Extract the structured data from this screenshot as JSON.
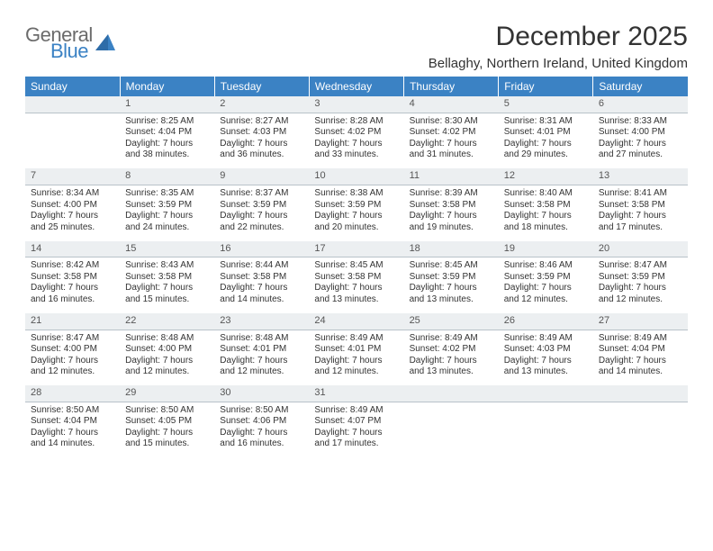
{
  "brand": {
    "general": "General",
    "blue": "Blue"
  },
  "title": "December 2025",
  "location": "Bellaghy, Northern Ireland, United Kingdom",
  "header_bg": "#3b82c4",
  "header_fg": "#ffffff",
  "daynum_bg": "#eceff1",
  "daynum_border": "#b8c2c9",
  "weekdays": [
    "Sunday",
    "Monday",
    "Tuesday",
    "Wednesday",
    "Thursday",
    "Friday",
    "Saturday"
  ],
  "weeks": [
    {
      "nums": [
        "",
        "1",
        "2",
        "3",
        "4",
        "5",
        "6"
      ],
      "cells": [
        null,
        {
          "sunrise": "Sunrise: 8:25 AM",
          "sunset": "Sunset: 4:04 PM",
          "daylight": "Daylight: 7 hours and 38 minutes."
        },
        {
          "sunrise": "Sunrise: 8:27 AM",
          "sunset": "Sunset: 4:03 PM",
          "daylight": "Daylight: 7 hours and 36 minutes."
        },
        {
          "sunrise": "Sunrise: 8:28 AM",
          "sunset": "Sunset: 4:02 PM",
          "daylight": "Daylight: 7 hours and 33 minutes."
        },
        {
          "sunrise": "Sunrise: 8:30 AM",
          "sunset": "Sunset: 4:02 PM",
          "daylight": "Daylight: 7 hours and 31 minutes."
        },
        {
          "sunrise": "Sunrise: 8:31 AM",
          "sunset": "Sunset: 4:01 PM",
          "daylight": "Daylight: 7 hours and 29 minutes."
        },
        {
          "sunrise": "Sunrise: 8:33 AM",
          "sunset": "Sunset: 4:00 PM",
          "daylight": "Daylight: 7 hours and 27 minutes."
        }
      ]
    },
    {
      "nums": [
        "7",
        "8",
        "9",
        "10",
        "11",
        "12",
        "13"
      ],
      "cells": [
        {
          "sunrise": "Sunrise: 8:34 AM",
          "sunset": "Sunset: 4:00 PM",
          "daylight": "Daylight: 7 hours and 25 minutes."
        },
        {
          "sunrise": "Sunrise: 8:35 AM",
          "sunset": "Sunset: 3:59 PM",
          "daylight": "Daylight: 7 hours and 24 minutes."
        },
        {
          "sunrise": "Sunrise: 8:37 AM",
          "sunset": "Sunset: 3:59 PM",
          "daylight": "Daylight: 7 hours and 22 minutes."
        },
        {
          "sunrise": "Sunrise: 8:38 AM",
          "sunset": "Sunset: 3:59 PM",
          "daylight": "Daylight: 7 hours and 20 minutes."
        },
        {
          "sunrise": "Sunrise: 8:39 AM",
          "sunset": "Sunset: 3:58 PM",
          "daylight": "Daylight: 7 hours and 19 minutes."
        },
        {
          "sunrise": "Sunrise: 8:40 AM",
          "sunset": "Sunset: 3:58 PM",
          "daylight": "Daylight: 7 hours and 18 minutes."
        },
        {
          "sunrise": "Sunrise: 8:41 AM",
          "sunset": "Sunset: 3:58 PM",
          "daylight": "Daylight: 7 hours and 17 minutes."
        }
      ]
    },
    {
      "nums": [
        "14",
        "15",
        "16",
        "17",
        "18",
        "19",
        "20"
      ],
      "cells": [
        {
          "sunrise": "Sunrise: 8:42 AM",
          "sunset": "Sunset: 3:58 PM",
          "daylight": "Daylight: 7 hours and 16 minutes."
        },
        {
          "sunrise": "Sunrise: 8:43 AM",
          "sunset": "Sunset: 3:58 PM",
          "daylight": "Daylight: 7 hours and 15 minutes."
        },
        {
          "sunrise": "Sunrise: 8:44 AM",
          "sunset": "Sunset: 3:58 PM",
          "daylight": "Daylight: 7 hours and 14 minutes."
        },
        {
          "sunrise": "Sunrise: 8:45 AM",
          "sunset": "Sunset: 3:58 PM",
          "daylight": "Daylight: 7 hours and 13 minutes."
        },
        {
          "sunrise": "Sunrise: 8:45 AM",
          "sunset": "Sunset: 3:59 PM",
          "daylight": "Daylight: 7 hours and 13 minutes."
        },
        {
          "sunrise": "Sunrise: 8:46 AM",
          "sunset": "Sunset: 3:59 PM",
          "daylight": "Daylight: 7 hours and 12 minutes."
        },
        {
          "sunrise": "Sunrise: 8:47 AM",
          "sunset": "Sunset: 3:59 PM",
          "daylight": "Daylight: 7 hours and 12 minutes."
        }
      ]
    },
    {
      "nums": [
        "21",
        "22",
        "23",
        "24",
        "25",
        "26",
        "27"
      ],
      "cells": [
        {
          "sunrise": "Sunrise: 8:47 AM",
          "sunset": "Sunset: 4:00 PM",
          "daylight": "Daylight: 7 hours and 12 minutes."
        },
        {
          "sunrise": "Sunrise: 8:48 AM",
          "sunset": "Sunset: 4:00 PM",
          "daylight": "Daylight: 7 hours and 12 minutes."
        },
        {
          "sunrise": "Sunrise: 8:48 AM",
          "sunset": "Sunset: 4:01 PM",
          "daylight": "Daylight: 7 hours and 12 minutes."
        },
        {
          "sunrise": "Sunrise: 8:49 AM",
          "sunset": "Sunset: 4:01 PM",
          "daylight": "Daylight: 7 hours and 12 minutes."
        },
        {
          "sunrise": "Sunrise: 8:49 AM",
          "sunset": "Sunset: 4:02 PM",
          "daylight": "Daylight: 7 hours and 13 minutes."
        },
        {
          "sunrise": "Sunrise: 8:49 AM",
          "sunset": "Sunset: 4:03 PM",
          "daylight": "Daylight: 7 hours and 13 minutes."
        },
        {
          "sunrise": "Sunrise: 8:49 AM",
          "sunset": "Sunset: 4:04 PM",
          "daylight": "Daylight: 7 hours and 14 minutes."
        }
      ]
    },
    {
      "nums": [
        "28",
        "29",
        "30",
        "31",
        "",
        "",
        ""
      ],
      "cells": [
        {
          "sunrise": "Sunrise: 8:50 AM",
          "sunset": "Sunset: 4:04 PM",
          "daylight": "Daylight: 7 hours and 14 minutes."
        },
        {
          "sunrise": "Sunrise: 8:50 AM",
          "sunset": "Sunset: 4:05 PM",
          "daylight": "Daylight: 7 hours and 15 minutes."
        },
        {
          "sunrise": "Sunrise: 8:50 AM",
          "sunset": "Sunset: 4:06 PM",
          "daylight": "Daylight: 7 hours and 16 minutes."
        },
        {
          "sunrise": "Sunrise: 8:49 AM",
          "sunset": "Sunset: 4:07 PM",
          "daylight": "Daylight: 7 hours and 17 minutes."
        },
        null,
        null,
        null
      ]
    }
  ]
}
